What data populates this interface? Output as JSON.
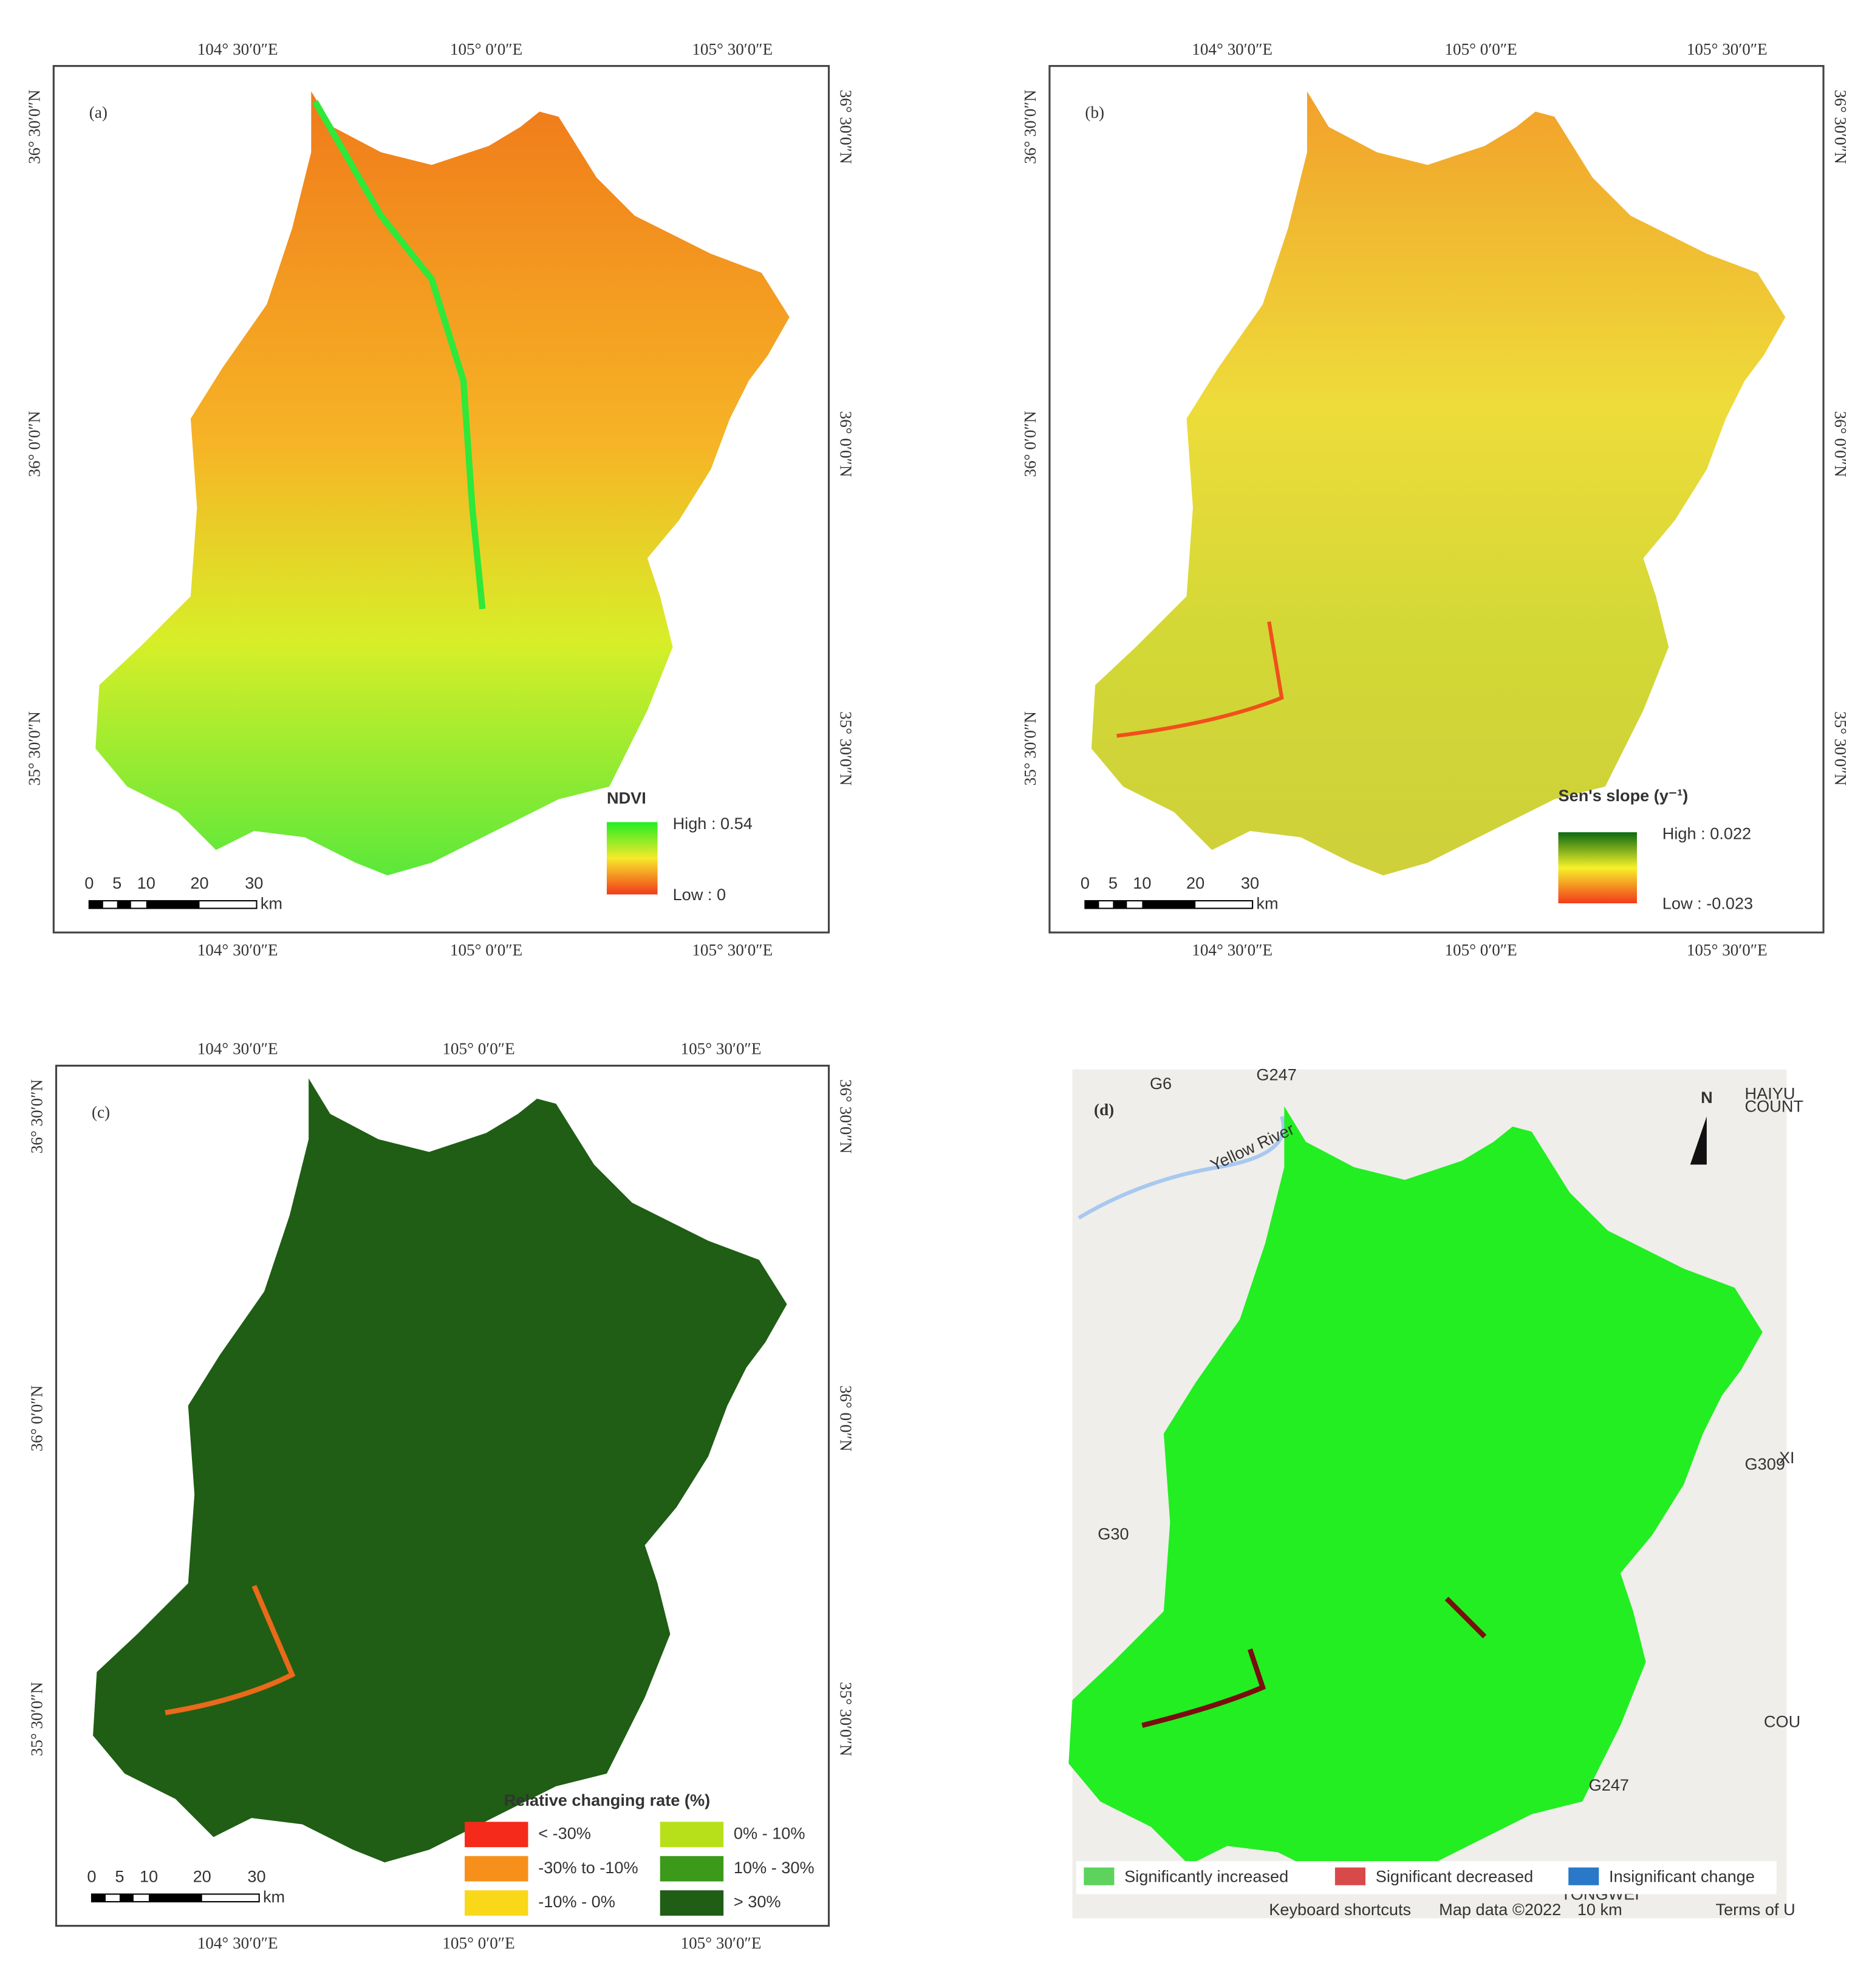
{
  "panels": [
    {
      "label": "(a)",
      "top_ticks": [
        "104° 30′0″E",
        "105° 0′0″E",
        "105° 30′0″E"
      ],
      "bottom_ticks": [
        "104° 30′0″E",
        "105° 0′0″E",
        "105° 30′0″E"
      ],
      "left_ticks": [
        "36° 30′0″N",
        "36° 0′0″N",
        "35° 30′0″N"
      ],
      "right_ticks": [
        "36° 30′0″N",
        "36° 0′0″N",
        "35° 30′0″N"
      ],
      "scale": {
        "numbers": [
          "0",
          "5",
          "10",
          "20",
          "30"
        ],
        "unit": "km"
      },
      "legend": {
        "title": "NDVI",
        "high": "High : 0.54",
        "low": "Low : 0"
      }
    },
    {
      "label": "(b)",
      "top_ticks": [
        "104° 30′0″E",
        "105° 0′0″E",
        "105° 30′0″E"
      ],
      "bottom_ticks": [
        "104° 30′0″E",
        "105° 0′0″E",
        "105° 30′0″E"
      ],
      "left_ticks": [
        "36° 30′0″N",
        "36° 0′0″N",
        "35° 30′0″N"
      ],
      "right_ticks": [
        "36° 30′0″N",
        "36° 0′0″N",
        "35° 30′0″N"
      ],
      "scale": {
        "numbers": [
          "0",
          "5",
          "10",
          "20",
          "30"
        ],
        "unit": "km"
      },
      "legend": {
        "title": "Sen's slope (y⁻¹)",
        "high": "High : 0.022",
        "low": "Low : -0.023"
      }
    },
    {
      "label": "(c)",
      "top_ticks": [
        "104° 30′0″E",
        "105° 0′0″E",
        "105° 30′0″E"
      ],
      "bottom_ticks": [
        "104° 30′0″E",
        "105° 0′0″E",
        "105° 30′0″E"
      ],
      "left_ticks": [
        "36° 30′0″N",
        "36° 0′0″N",
        "35° 30′0″N"
      ],
      "right_ticks": [
        "36° 30′0″N",
        "36° 0′0″N",
        "35° 30′0″N"
      ],
      "scale": {
        "numbers": [
          "0",
          "5",
          "10",
          "20",
          "30"
        ],
        "unit": "km"
      },
      "legend": {
        "title": "Relative changing rate (%)",
        "items": [
          "< -30%",
          "-30% to -10%",
          "-10% - 0%",
          "0% - 10%",
          "10% - 30%",
          "> 30%"
        ]
      }
    },
    {
      "label": "(d)",
      "north": "N",
      "map_labels": [
        "G6",
        "G247",
        "HAIYU",
        "COUNT",
        "Yellow River",
        "G309",
        "XI",
        "G30",
        "COU",
        "G247",
        "TONGWEI"
      ],
      "legend": {
        "items": [
          "Significantly increased",
          "Significant decreased",
          "Insignificant change"
        ]
      },
      "footer": [
        "Keyboard shortcuts",
        "Map data ©2022",
        "10 km",
        "Terms of U"
      ]
    }
  ]
}
